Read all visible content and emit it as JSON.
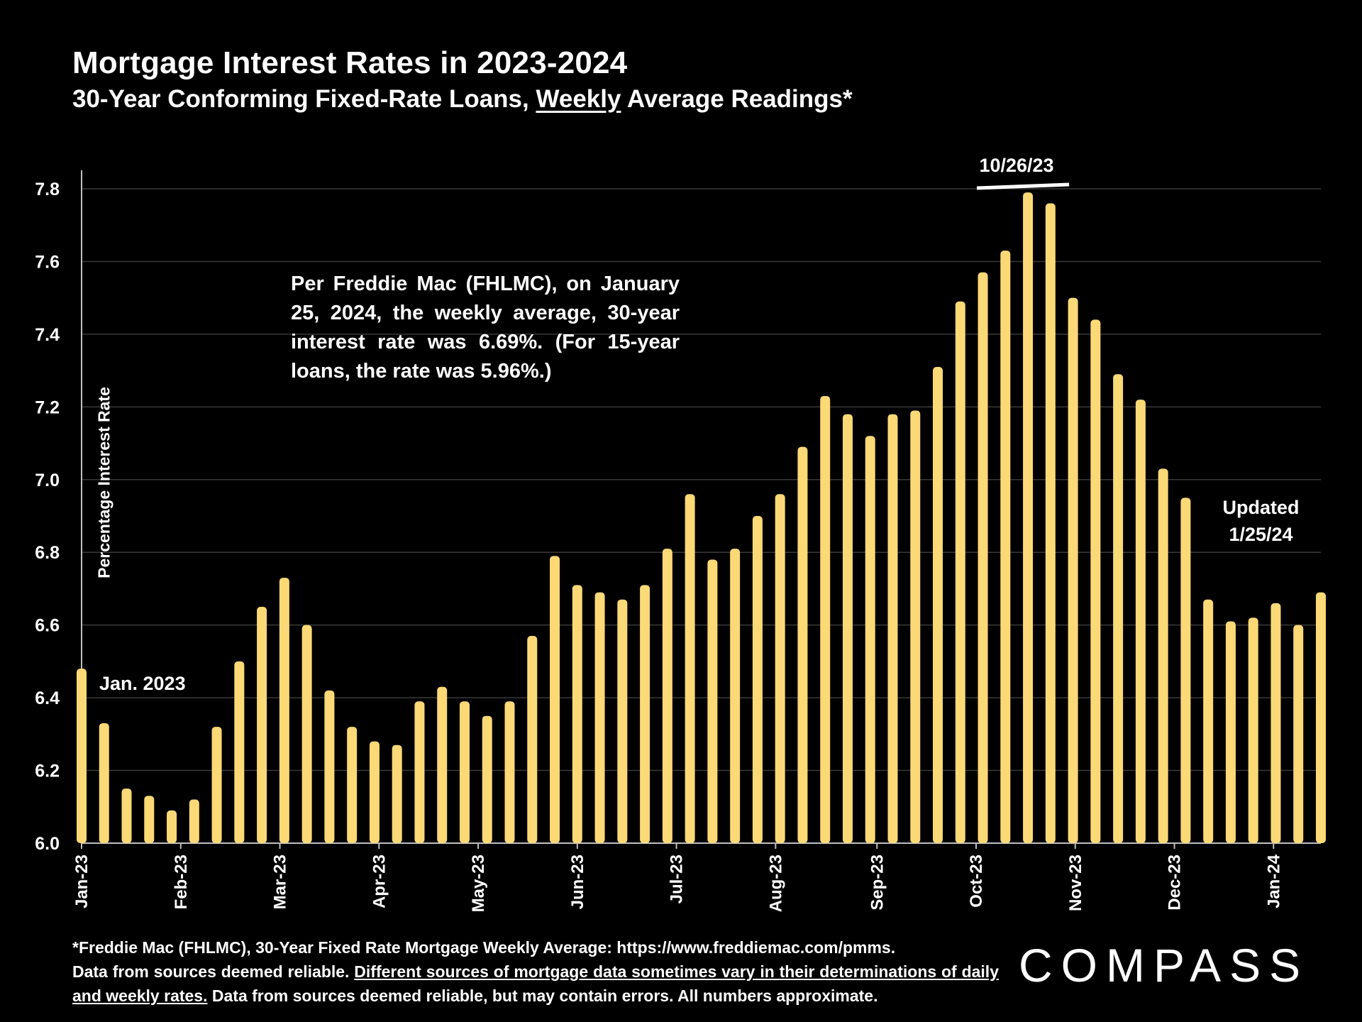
{
  "header": {
    "title": "Mortgage Interest Rates in 2023-2024",
    "subtitle_pre": "30-Year Conforming Fixed-Rate Loans, ",
    "subtitle_underlined": "Weekly",
    "subtitle_post": " Average Readings*"
  },
  "annotations": {
    "note": "Per Freddie Mac (FHLMC), on January 25, 2024, the weekly average, 30-year interest rate was 6.69%. (For 15-year loans, the rate was 5.96%.)",
    "jan_label": "Jan. 2023",
    "updated_line1": "Updated",
    "updated_line2": "1/25/24",
    "peak_label": "10/26/23"
  },
  "footnote": {
    "line1": "*Freddie Mac (FHLMC), 30-Year Fixed Rate Mortgage Weekly Average:  https://www.freddiemac.com/pmms.",
    "line2_pre": "Data from sources deemed reliable. ",
    "line2_underlined": "Different sources of mortgage data sometimes vary in their determinations of daily and weekly rates.",
    "line2_post": " Data from sources deemed reliable, but may contain errors. All numbers approximate."
  },
  "logo": "COMPASS",
  "colors": {
    "bar": "#FBD976",
    "background": "#000000",
    "text": "#FFFFFF",
    "grid": "#3a3a3a"
  },
  "chart_data": {
    "type": "bar",
    "ylabel": "Percentage Interest  Rate",
    "ylim": [
      6.0,
      7.8
    ],
    "yticks": [
      "6.0",
      "6.2",
      "6.4",
      "6.6",
      "6.8",
      "7.0",
      "7.2",
      "7.4",
      "7.6",
      "7.8"
    ],
    "grid": true,
    "x_tick_labels": [
      {
        "label": "Jan-23",
        "index": 0
      },
      {
        "label": "Feb-23",
        "index": 4.4
      },
      {
        "label": "Mar-23",
        "index": 8.8
      },
      {
        "label": "Apr-23",
        "index": 13.2
      },
      {
        "label": "May-23",
        "index": 17.6
      },
      {
        "label": "Jun-23",
        "index": 22
      },
      {
        "label": "Jul-23",
        "index": 26.4
      },
      {
        "label": "Aug-23",
        "index": 30.8
      },
      {
        "label": "Sep-23",
        "index": 35.3
      },
      {
        "label": "Oct-23",
        "index": 39.7
      },
      {
        "label": "Nov-23",
        "index": 44.1
      },
      {
        "label": "Dec-23",
        "index": 48.5
      },
      {
        "label": "Jan-24",
        "index": 52.9
      }
    ],
    "values": [
      6.48,
      6.33,
      6.15,
      6.13,
      6.09,
      6.12,
      6.32,
      6.5,
      6.65,
      6.73,
      6.6,
      6.42,
      6.32,
      6.28,
      6.27,
      6.39,
      6.43,
      6.39,
      6.35,
      6.39,
      6.57,
      6.79,
      6.71,
      6.69,
      6.67,
      6.71,
      6.81,
      6.96,
      6.78,
      6.81,
      6.9,
      6.96,
      7.09,
      7.23,
      7.18,
      7.12,
      7.18,
      7.19,
      7.31,
      7.49,
      7.57,
      7.63,
      7.79,
      7.76,
      7.5,
      7.44,
      7.29,
      7.22,
      7.03,
      6.95,
      6.67,
      6.61,
      6.62,
      6.66,
      6.6,
      6.69
    ],
    "peak_index": 42
  }
}
